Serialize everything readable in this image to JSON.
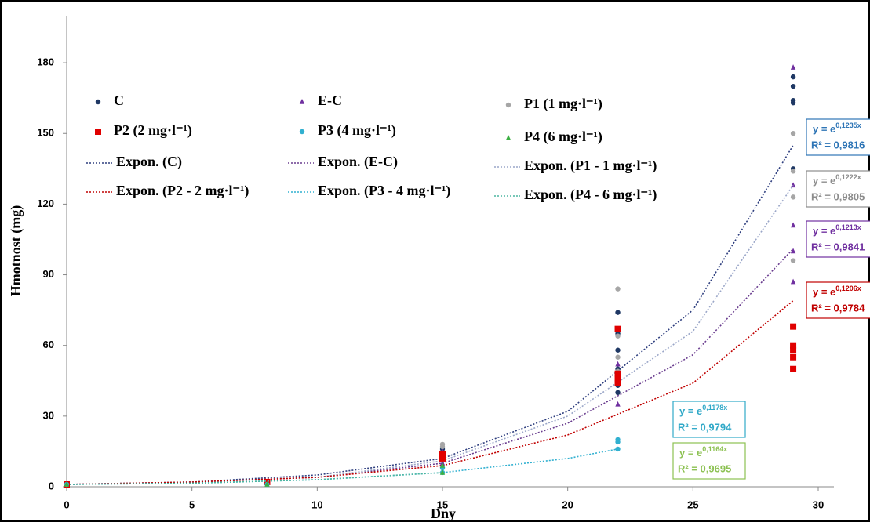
{
  "chart_data": {
    "type": "scatter",
    "x_label": "Dny",
    "y_label": "Hmotnost (mg)",
    "xlim": [
      0,
      30
    ],
    "xticks": [
      0,
      5,
      10,
      15,
      20,
      25,
      30
    ],
    "ylim": [
      0,
      200
    ],
    "yticks": [
      0,
      30,
      60,
      90,
      120,
      150,
      180
    ],
    "grid": false,
    "series": [
      {
        "name": "C",
        "color": "#1f3864",
        "marker": "circle",
        "x": [
          0,
          8,
          15,
          15,
          22,
          22,
          22,
          22,
          22,
          22,
          29,
          29,
          29,
          29,
          29
        ],
        "values": [
          1,
          2,
          16,
          12,
          74,
          65,
          58,
          50,
          43,
          40,
          174,
          170,
          164,
          163,
          135
        ],
        "trend": {
          "name": "Expon. (C)",
          "color": "#2f3f7f",
          "x": [
            0,
            5,
            10,
            15,
            20,
            25,
            29
          ],
          "values": [
            1,
            2,
            5,
            12,
            32,
            75,
            145
          ],
          "equation": {
            "base": "y = e",
            "exponent": "0,1235x",
            "r2": "R² = 0,9816",
            "color": "#2e75b6"
          }
        }
      },
      {
        "name": "E-C",
        "color": "#7030a0",
        "marker": "triangle",
        "x": [
          0,
          8,
          15,
          15,
          22,
          22,
          22,
          29,
          29,
          29,
          29,
          29
        ],
        "values": [
          1,
          2,
          15,
          10,
          52,
          45,
          35,
          178,
          128,
          111,
          100,
          87
        ],
        "trend": {
          "name": "Expon. (E-C)",
          "color": "#6a3d8f",
          "x": [
            0,
            5,
            10,
            15,
            20,
            25,
            29
          ],
          "values": [
            1,
            2,
            4,
            10,
            27,
            56,
            101
          ],
          "equation": {
            "base": "y = e",
            "exponent": "0,1213x",
            "r2": "R² = 0,9841",
            "color": "#7030a0"
          }
        }
      },
      {
        "name": "P1 (1 mg·l⁻¹)",
        "color": "#a6a6a6",
        "marker": "circle",
        "x": [
          0,
          8,
          15,
          15,
          15,
          22,
          22,
          22,
          22,
          29,
          29,
          29,
          29
        ],
        "values": [
          1,
          2,
          18,
          17,
          13,
          84,
          64,
          55,
          49,
          150,
          134,
          123,
          96
        ],
        "trend": {
          "name": "Expon. (P1 - 1 mg·l⁻¹)",
          "color": "#9aa6c8",
          "x": [
            0,
            5,
            10,
            15,
            20,
            25,
            29
          ],
          "values": [
            1,
            2,
            4,
            11,
            30,
            66,
            128
          ],
          "equation": {
            "base": "y = e",
            "exponent": "0,1222x",
            "r2": "R² = 0,9805",
            "color": "#8c8c8c"
          }
        }
      },
      {
        "name": "P2 (2 mg·l⁻¹)",
        "color": "#e00000",
        "marker": "square",
        "x": [
          0,
          8,
          15,
          15,
          22,
          22,
          22,
          22,
          29,
          29,
          29,
          29,
          29
        ],
        "values": [
          1,
          2,
          14,
          12,
          67,
          48,
          46,
          44,
          68,
          60,
          58,
          55,
          50
        ],
        "trend": {
          "name": "Expon. (P2 - 2 mg·l⁻¹)",
          "color": "#c00000",
          "x": [
            0,
            5,
            10,
            15,
            20,
            25,
            29
          ],
          "values": [
            1,
            2,
            4,
            9,
            22,
            44,
            79
          ],
          "equation": {
            "base": "y = e",
            "exponent": "0,1206x",
            "r2": "R² = 0,9784",
            "color": "#c00000"
          }
        }
      },
      {
        "name": "P3 (4 mg·l⁻¹)",
        "color": "#31b0d0",
        "marker": "circle",
        "x": [
          0,
          8,
          15,
          15,
          22,
          22,
          22
        ],
        "values": [
          1,
          1,
          8,
          6,
          20,
          19,
          16
        ],
        "trend": {
          "name": "Expon. (P3 - 4 mg·l⁻¹)",
          "color": "#31b0d0",
          "x": [
            0,
            5,
            10,
            15,
            20,
            22
          ],
          "values": [
            1,
            1.5,
            3,
            6,
            12,
            16
          ],
          "equation": {
            "base": "y = e",
            "exponent": "0,1178x",
            "r2": "R² = 0,9794",
            "color": "#31a9c8"
          }
        }
      },
      {
        "name": "P4 (6 mg·l⁻¹)",
        "color": "#3cb043",
        "marker": "triangle",
        "x": [
          0,
          8,
          15,
          15
        ],
        "values": [
          1,
          1,
          9,
          6
        ],
        "trend": {
          "name": "Expon. (P4 - 6 mg·l⁻¹)",
          "color": "#4cb6a0",
          "x": [
            0,
            5,
            10,
            15
          ],
          "values": [
            1,
            1.5,
            3,
            6
          ],
          "equation": {
            "base": "y = e",
            "exponent": "0,1164x",
            "r2": "R² = 0,9695",
            "color": "#8cc152"
          }
        }
      }
    ]
  }
}
